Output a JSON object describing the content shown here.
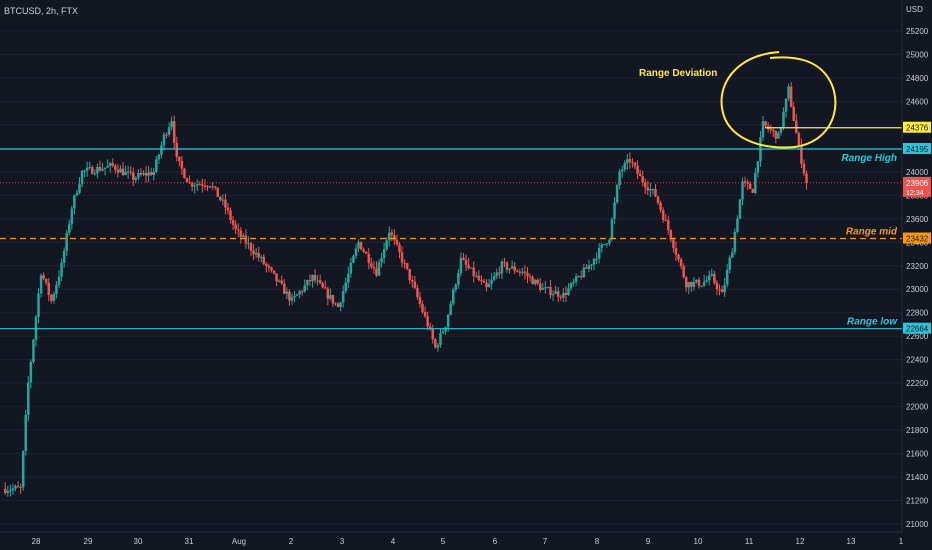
{
  "header": {
    "symbol_label": "BTCUSD, 2h, FTX",
    "currency": "USD"
  },
  "colors": {
    "background": "#131722",
    "up": "#26a69a",
    "down": "#ef5350",
    "range_line": "#27c6da",
    "mid_line": "#ff9800",
    "annotation": "#ffeb3b",
    "axis_text": "#c9ccd4",
    "grid": "#1e2230"
  },
  "chart_data": {
    "type": "candlestick",
    "ylim": [
      20950,
      25350
    ],
    "y_ticks": [
      21000,
      21200,
      21400,
      21600,
      21800,
      22000,
      22200,
      22400,
      22600,
      22800,
      23000,
      23200,
      23400,
      23600,
      23800,
      24000,
      24200,
      24400,
      24600,
      24800,
      25000,
      25200
    ],
    "x_ticks": [
      "28",
      "29",
      "30",
      "31",
      "Aug",
      "2",
      "3",
      "4",
      "5",
      "6",
      "7",
      "8",
      "9",
      "10",
      "11",
      "12",
      "13",
      "1"
    ],
    "levels": {
      "range_high": {
        "label": "Range High",
        "value": 24195,
        "tag": "24195"
      },
      "range_mid": {
        "label": "Range mid",
        "value": 23432,
        "tag": "23432"
      },
      "range_low": {
        "label": "Range low",
        "value": 22664,
        "tag": "22664"
      },
      "deviation": {
        "value": 24376,
        "tag": "24376"
      },
      "last_price": {
        "value": 23906,
        "tag": "23906",
        "countdown": "12:34"
      }
    },
    "annotation": "Range Deviation",
    "control_points": [
      [
        0,
        21300
      ],
      [
        6,
        21300
      ],
      [
        9,
        22200
      ],
      [
        14,
        23150
      ],
      [
        18,
        22900
      ],
      [
        22,
        23200
      ],
      [
        26,
        23700
      ],
      [
        30,
        24000
      ],
      [
        42,
        24050
      ],
      [
        50,
        23950
      ],
      [
        58,
        24000
      ],
      [
        62,
        24300
      ],
      [
        65,
        24450
      ],
      [
        67,
        24100
      ],
      [
        72,
        23900
      ],
      [
        80,
        23900
      ],
      [
        86,
        23700
      ],
      [
        90,
        23500
      ],
      [
        100,
        23250
      ],
      [
        112,
        22900
      ],
      [
        120,
        23100
      ],
      [
        130,
        22850
      ],
      [
        138,
        23400
      ],
      [
        145,
        23150
      ],
      [
        150,
        23500
      ],
      [
        158,
        23100
      ],
      [
        165,
        22700
      ],
      [
        168,
        22500
      ],
      [
        172,
        22700
      ],
      [
        178,
        23250
      ],
      [
        188,
        23000
      ],
      [
        194,
        23200
      ],
      [
        202,
        23150
      ],
      [
        210,
        23000
      ],
      [
        218,
        22950
      ],
      [
        228,
        23200
      ],
      [
        236,
        23450
      ],
      [
        240,
        24000
      ],
      [
        244,
        24100
      ],
      [
        248,
        23950
      ],
      [
        254,
        23800
      ],
      [
        260,
        23450
      ],
      [
        266,
        23050
      ],
      [
        272,
        23050
      ],
      [
        276,
        23100
      ],
      [
        280,
        22950
      ],
      [
        284,
        23350
      ],
      [
        288,
        23900
      ],
      [
        292,
        23850
      ],
      [
        296,
        24400
      ],
      [
        302,
        24300
      ],
      [
        306,
        24700
      ],
      [
        310,
        24200
      ],
      [
        313,
        23906
      ]
    ]
  }
}
